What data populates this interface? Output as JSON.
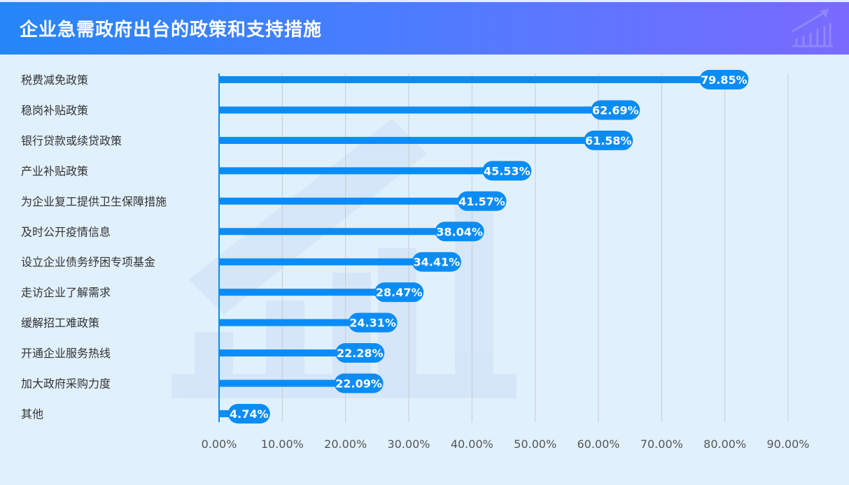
{
  "header": {
    "title": "企业急需政府出台的政策和支持措施"
  },
  "colors": {
    "bar": "#0a8cf6",
    "grid": "#c8ccd2",
    "header_start": "#2586f7",
    "header_end": "#7a6aff"
  },
  "chart_data": {
    "type": "bar",
    "orientation": "horizontal",
    "title": "企业急需政府出台的政策和支持措施",
    "categories": [
      "税费减免政策",
      "稳岗补贴政策",
      "银行贷款或续贷政策",
      "产业补贴政策",
      "为企业复工提供卫生保障措施",
      "及时公开疫情信息",
      "设立企业债务纾困专项基金",
      "走访企业了解需求",
      "缓解招工难政策",
      "开通企业服务热线",
      "加大政府采购力度",
      "其他"
    ],
    "values": [
      79.85,
      62.69,
      61.58,
      45.53,
      41.57,
      38.04,
      34.41,
      28.47,
      24.31,
      22.28,
      22.09,
      4.74
    ],
    "data_labels": [
      "79.85%",
      "62.69%",
      "61.58%",
      "45.53%",
      "41.57%",
      "38.04%",
      "34.41%",
      "28.47%",
      "24.31%",
      "22.28%",
      "22.09%",
      "4.74%"
    ],
    "xlim": [
      0,
      90
    ],
    "xticks": [
      0,
      10,
      20,
      30,
      40,
      50,
      60,
      70,
      80,
      90
    ],
    "xtick_labels": [
      "0.00%",
      "10.00%",
      "20.00%",
      "30.00%",
      "40.00%",
      "50.00%",
      "60.00%",
      "70.00%",
      "80.00%",
      "90.00%"
    ],
    "xlabel": "",
    "ylabel": "",
    "grid": true,
    "legend": "none"
  }
}
